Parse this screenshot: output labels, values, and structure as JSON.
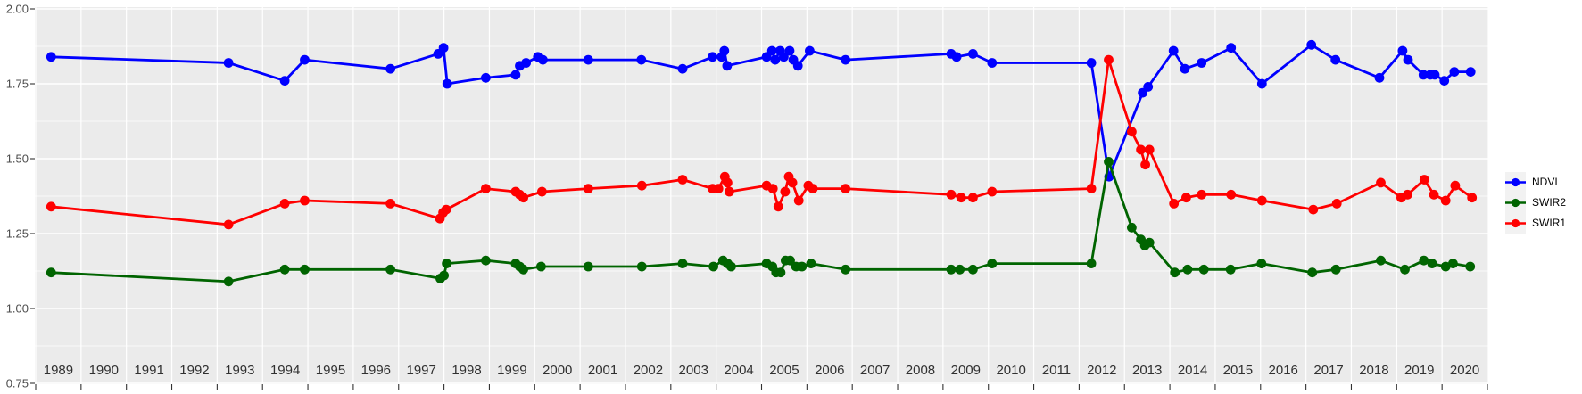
{
  "chart_data": {
    "type": "line",
    "title": "",
    "panel": {
      "bg": "#EBEBEB",
      "grid_major": "#FFFFFF",
      "grid_minor": "#FFFFFF",
      "outer_bg": "#FFFFFF",
      "tick_color": "#333333",
      "axis_text_color_y": "#4D4D4D",
      "axis_text_color_x": "#303030"
    },
    "x_axis": {
      "range": [
        1989,
        2021
      ],
      "tick_step_years": 1,
      "year_labels": [
        "1989",
        "1990",
        "1991",
        "1992",
        "1993",
        "1994",
        "1995",
        "1996",
        "1997",
        "1998",
        "1999",
        "2000",
        "2001",
        "2002",
        "2003",
        "2004",
        "2005",
        "2006",
        "2007",
        "2008",
        "2009",
        "2010",
        "2011",
        "2012",
        "2013",
        "2014",
        "2015",
        "2016",
        "2017",
        "2018",
        "2019",
        "2020"
      ]
    },
    "y_axis": {
      "range": [
        0.75,
        2.0
      ],
      "ticks": [
        "0.75",
        "1.00",
        "1.25",
        "1.50",
        "1.75",
        "2.00"
      ],
      "minor_step": 0.125
    },
    "legend": {
      "position": "right",
      "key_bg": "#F2F2F2",
      "entries": [
        {
          "label": "NDVI",
          "color": "#0000FF"
        },
        {
          "label": "SWIR2",
          "color": "#006400"
        },
        {
          "label": "SWIR1",
          "color": "#FF0000"
        }
      ]
    },
    "series": [
      {
        "name": "NDVI",
        "color": "#0000FF",
        "points": [
          [
            1989.34,
            1.84
          ],
          [
            1993.25,
            1.82
          ],
          [
            1994.49,
            1.76
          ],
          [
            1994.93,
            1.83
          ],
          [
            1996.82,
            1.8
          ],
          [
            1997.87,
            1.85
          ],
          [
            1997.99,
            1.87
          ],
          [
            1998.07,
            1.75
          ],
          [
            1998.92,
            1.77
          ],
          [
            1999.58,
            1.78
          ],
          [
            1999.67,
            1.81
          ],
          [
            1999.81,
            1.82
          ],
          [
            2000.07,
            1.84
          ],
          [
            2000.18,
            1.83
          ],
          [
            2001.18,
            1.83
          ],
          [
            2002.35,
            1.83
          ],
          [
            2003.26,
            1.8
          ],
          [
            2003.92,
            1.84
          ],
          [
            2004.12,
            1.84
          ],
          [
            2004.18,
            1.86
          ],
          [
            2004.24,
            1.81
          ],
          [
            2005.11,
            1.84
          ],
          [
            2005.23,
            1.86
          ],
          [
            2005.3,
            1.83
          ],
          [
            2005.41,
            1.86
          ],
          [
            2005.49,
            1.84
          ],
          [
            2005.62,
            1.86
          ],
          [
            2005.7,
            1.83
          ],
          [
            2005.8,
            1.81
          ],
          [
            2006.06,
            1.86
          ],
          [
            2006.85,
            1.83
          ],
          [
            2009.18,
            1.85
          ],
          [
            2009.3,
            1.84
          ],
          [
            2009.66,
            1.85
          ],
          [
            2010.08,
            1.82
          ],
          [
            2012.27,
            1.82
          ],
          [
            2012.66,
            1.44
          ],
          [
            2013.4,
            1.72
          ],
          [
            2013.52,
            1.74
          ],
          [
            2014.08,
            1.86
          ],
          [
            2014.33,
            1.8
          ],
          [
            2014.7,
            1.82
          ],
          [
            2015.35,
            1.87
          ],
          [
            2016.03,
            1.75
          ],
          [
            2017.12,
            1.88
          ],
          [
            2017.65,
            1.83
          ],
          [
            2018.62,
            1.77
          ],
          [
            2019.13,
            1.86
          ],
          [
            2019.25,
            1.83
          ],
          [
            2019.59,
            1.78
          ],
          [
            2019.74,
            1.78
          ],
          [
            2019.84,
            1.78
          ],
          [
            2020.05,
            1.76
          ],
          [
            2020.27,
            1.79
          ],
          [
            2020.63,
            1.79
          ]
        ]
      },
      {
        "name": "SWIR2",
        "color": "#006400",
        "points": [
          [
            1989.34,
            1.12
          ],
          [
            1993.25,
            1.09
          ],
          [
            1994.49,
            1.13
          ],
          [
            1994.93,
            1.13
          ],
          [
            1996.82,
            1.13
          ],
          [
            1997.92,
            1.1
          ],
          [
            1998.0,
            1.11
          ],
          [
            1998.06,
            1.15
          ],
          [
            1998.92,
            1.16
          ],
          [
            1999.58,
            1.15
          ],
          [
            1999.67,
            1.14
          ],
          [
            1999.75,
            1.13
          ],
          [
            2000.14,
            1.14
          ],
          [
            2001.18,
            1.14
          ],
          [
            2002.36,
            1.14
          ],
          [
            2003.26,
            1.15
          ],
          [
            2003.94,
            1.14
          ],
          [
            2004.15,
            1.16
          ],
          [
            2004.25,
            1.15
          ],
          [
            2004.33,
            1.14
          ],
          [
            2005.11,
            1.15
          ],
          [
            2005.24,
            1.14
          ],
          [
            2005.32,
            1.12
          ],
          [
            2005.42,
            1.12
          ],
          [
            2005.53,
            1.16
          ],
          [
            2005.63,
            1.16
          ],
          [
            2005.76,
            1.14
          ],
          [
            2005.89,
            1.14
          ],
          [
            2006.09,
            1.15
          ],
          [
            2006.85,
            1.13
          ],
          [
            2009.18,
            1.13
          ],
          [
            2009.37,
            1.13
          ],
          [
            2009.66,
            1.13
          ],
          [
            2010.08,
            1.15
          ],
          [
            2012.27,
            1.15
          ],
          [
            2012.65,
            1.49
          ],
          [
            2013.16,
            1.27
          ],
          [
            2013.36,
            1.23
          ],
          [
            2013.45,
            1.21
          ],
          [
            2013.55,
            1.22
          ],
          [
            2014.11,
            1.12
          ],
          [
            2014.39,
            1.13
          ],
          [
            2014.75,
            1.13
          ],
          [
            2015.34,
            1.13
          ],
          [
            2016.02,
            1.15
          ],
          [
            2017.14,
            1.12
          ],
          [
            2017.66,
            1.13
          ],
          [
            2018.65,
            1.16
          ],
          [
            2019.18,
            1.13
          ],
          [
            2019.6,
            1.16
          ],
          [
            2019.78,
            1.15
          ],
          [
            2020.08,
            1.14
          ],
          [
            2020.24,
            1.15
          ],
          [
            2020.62,
            1.14
          ]
        ]
      },
      {
        "name": "SWIR1",
        "color": "#FF0000",
        "points": [
          [
            1989.34,
            1.34
          ],
          [
            1993.25,
            1.28
          ],
          [
            1994.49,
            1.35
          ],
          [
            1994.93,
            1.36
          ],
          [
            1996.82,
            1.35
          ],
          [
            1997.91,
            1.3
          ],
          [
            1997.98,
            1.32
          ],
          [
            1998.05,
            1.33
          ],
          [
            1998.92,
            1.4
          ],
          [
            1999.58,
            1.39
          ],
          [
            1999.67,
            1.38
          ],
          [
            1999.75,
            1.37
          ],
          [
            2000.16,
            1.39
          ],
          [
            2001.18,
            1.4
          ],
          [
            2002.36,
            1.41
          ],
          [
            2003.26,
            1.43
          ],
          [
            2003.92,
            1.4
          ],
          [
            2004.05,
            1.4
          ],
          [
            2004.19,
            1.44
          ],
          [
            2004.25,
            1.42
          ],
          [
            2004.29,
            1.39
          ],
          [
            2005.11,
            1.41
          ],
          [
            2005.25,
            1.4
          ],
          [
            2005.37,
            1.34
          ],
          [
            2005.52,
            1.39
          ],
          [
            2005.6,
            1.44
          ],
          [
            2005.68,
            1.42
          ],
          [
            2005.82,
            1.36
          ],
          [
            2006.03,
            1.41
          ],
          [
            2006.13,
            1.4
          ],
          [
            2006.85,
            1.4
          ],
          [
            2009.18,
            1.38
          ],
          [
            2009.4,
            1.37
          ],
          [
            2009.66,
            1.37
          ],
          [
            2010.08,
            1.39
          ],
          [
            2012.27,
            1.4
          ],
          [
            2012.65,
            1.83
          ],
          [
            2013.16,
            1.59
          ],
          [
            2013.36,
            1.53
          ],
          [
            2013.46,
            1.48
          ],
          [
            2013.55,
            1.53
          ],
          [
            2014.09,
            1.35
          ],
          [
            2014.36,
            1.37
          ],
          [
            2014.7,
            1.38
          ],
          [
            2015.35,
            1.38
          ],
          [
            2016.03,
            1.36
          ],
          [
            2017.16,
            1.33
          ],
          [
            2017.68,
            1.35
          ],
          [
            2018.65,
            1.42
          ],
          [
            2019.1,
            1.37
          ],
          [
            2019.24,
            1.38
          ],
          [
            2019.61,
            1.43
          ],
          [
            2019.82,
            1.38
          ],
          [
            2020.08,
            1.36
          ],
          [
            2020.29,
            1.41
          ],
          [
            2020.66,
            1.37
          ]
        ]
      }
    ]
  }
}
